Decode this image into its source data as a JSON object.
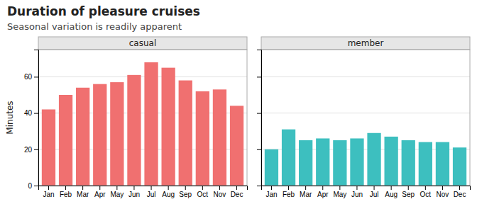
{
  "title": "Duration of pleasure cruises",
  "subtitle": "Seasonal variation is readily apparent",
  "chart_data": [
    {
      "type": "bar",
      "title": "casual",
      "categories": [
        "Jan",
        "Feb",
        "Mar",
        "Apr",
        "May",
        "Jun",
        "Jul",
        "Aug",
        "Sep",
        "Oct",
        "Nov",
        "Dec"
      ],
      "values": [
        42,
        50,
        54,
        56,
        57,
        61,
        68,
        65,
        58,
        52,
        53,
        44
      ],
      "color": "#F07070",
      "ylabel": "Minutes",
      "ylim": [
        0,
        75
      ],
      "yticks": [
        0,
        20,
        40,
        60
      ],
      "grid": true
    },
    {
      "type": "bar",
      "title": "member",
      "categories": [
        "Jan",
        "Feb",
        "Mar",
        "Apr",
        "May",
        "Jun",
        "Jul",
        "Aug",
        "Sep",
        "Oct",
        "Nov",
        "Dec"
      ],
      "values": [
        20,
        31,
        25,
        26,
        25,
        26,
        29,
        27,
        25,
        24,
        24,
        21
      ],
      "color": "#3DBFBF",
      "ylim": [
        0,
        75
      ],
      "yticks": [
        0,
        20,
        40,
        60
      ],
      "grid": true,
      "tick_labels": "x"
    }
  ]
}
